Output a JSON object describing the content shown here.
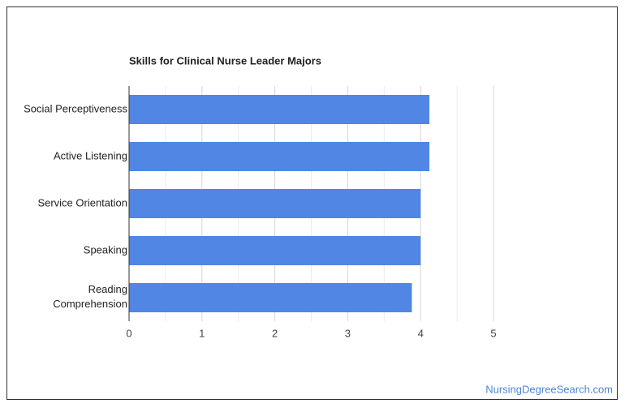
{
  "chart_data": {
    "type": "bar",
    "orientation": "horizontal",
    "title": "Skills for Clinical Nurse Leader Majors",
    "categories": [
      "Social Perceptiveness",
      "Active Listening",
      "Service Orientation",
      "Speaking",
      "Reading Comprehension"
    ],
    "values": [
      4.12,
      4.12,
      4.0,
      4.0,
      3.88
    ],
    "color": "#5186e4",
    "xlim": [
      0,
      5
    ],
    "xticks": [
      0,
      1,
      2,
      3,
      4,
      5
    ],
    "grid": true
  },
  "footer": {
    "source": "NursingDegreeSearch.com"
  }
}
